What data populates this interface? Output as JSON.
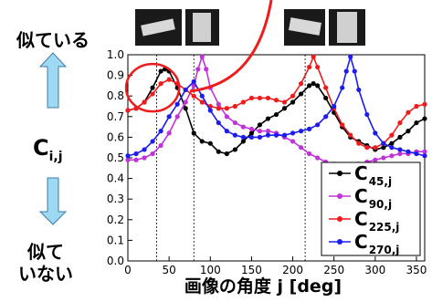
{
  "labels": {
    "similar": "似ている",
    "not_similar_line1": "似て",
    "not_similar_line2": "いない",
    "cij_main": "C",
    "cij_sub": "i,j"
  },
  "arrows": {
    "color": "#9fd8f2",
    "up": "up-arrow-icon",
    "down": "down-arrow-icon"
  },
  "thumbnails": [
    "box-photo-1",
    "box-photo-2",
    "box-photo-3",
    "box-photo-4"
  ],
  "chart_data": {
    "type": "line",
    "xlabel": "画像の角度 j [deg]",
    "ylabel": "",
    "xlim": [
      0,
      360
    ],
    "ylim": [
      0.0,
      1.0
    ],
    "x_ticks": [
      "0",
      "50",
      "100",
      "150",
      "200",
      "250",
      "300",
      "350"
    ],
    "y_ticks": [
      "0.0",
      "0.1",
      "0.2",
      "0.3",
      "0.4",
      "0.5",
      "0.6",
      "0.7",
      "0.8",
      "0.9",
      "1.0"
    ],
    "reference_lines_x": [
      35,
      80,
      215
    ],
    "legend_position": "bottom-right",
    "highlight_circle": {
      "x": 30,
      "y": 0.84
    },
    "series": [
      {
        "name": "C",
        "sub": "45,j",
        "color": "#000000",
        "x": [
          0,
          10,
          20,
          30,
          40,
          45,
          50,
          60,
          70,
          80,
          90,
          100,
          110,
          120,
          130,
          140,
          150,
          160,
          170,
          180,
          190,
          200,
          210,
          220,
          225,
          230,
          240,
          250,
          260,
          270,
          280,
          290,
          300,
          310,
          320,
          330,
          340,
          350,
          360
        ],
        "values": [
          0.73,
          0.74,
          0.77,
          0.84,
          0.92,
          0.93,
          0.92,
          0.84,
          0.74,
          0.62,
          0.58,
          0.57,
          0.53,
          0.52,
          0.54,
          0.58,
          0.62,
          0.66,
          0.69,
          0.71,
          0.74,
          0.77,
          0.81,
          0.85,
          0.86,
          0.85,
          0.79,
          0.72,
          0.65,
          0.6,
          0.58,
          0.56,
          0.54,
          0.55,
          0.57,
          0.6,
          0.63,
          0.67,
          0.69
        ]
      },
      {
        "name": "C",
        "sub": "90,j",
        "color": "#c033d8",
        "x": [
          0,
          10,
          20,
          30,
          40,
          50,
          60,
          70,
          80,
          85,
          90,
          95,
          100,
          110,
          120,
          130,
          140,
          150,
          160,
          170,
          180,
          190,
          200,
          210,
          220,
          230,
          240,
          250,
          260,
          270,
          280,
          290,
          300,
          310,
          320,
          330,
          340,
          350,
          360
        ],
        "values": [
          0.49,
          0.49,
          0.5,
          0.52,
          0.56,
          0.62,
          0.7,
          0.77,
          0.85,
          0.93,
          0.99,
          0.93,
          0.84,
          0.76,
          0.7,
          0.67,
          0.65,
          0.64,
          0.63,
          0.63,
          0.62,
          0.6,
          0.58,
          0.55,
          0.52,
          0.5,
          0.48,
          0.47,
          0.46,
          0.46,
          0.47,
          0.48,
          0.49,
          0.5,
          0.51,
          0.52,
          0.52,
          0.53,
          0.53
        ]
      },
      {
        "name": "C",
        "sub": "225,j",
        "color": "#ee1c1c",
        "x": [
          0,
          10,
          20,
          30,
          40,
          50,
          60,
          70,
          80,
          90,
          100,
          110,
          120,
          130,
          140,
          150,
          160,
          170,
          180,
          190,
          200,
          210,
          220,
          225,
          230,
          240,
          250,
          260,
          270,
          280,
          290,
          300,
          310,
          320,
          330,
          340,
          350,
          360
        ],
        "values": [
          0.73,
          0.74,
          0.77,
          0.81,
          0.86,
          0.88,
          0.86,
          0.83,
          0.8,
          0.77,
          0.75,
          0.74,
          0.74,
          0.75,
          0.77,
          0.79,
          0.79,
          0.79,
          0.78,
          0.77,
          0.8,
          0.86,
          0.94,
          0.99,
          0.94,
          0.84,
          0.74,
          0.66,
          0.61,
          0.57,
          0.55,
          0.55,
          0.57,
          0.61,
          0.67,
          0.72,
          0.75,
          0.76
        ]
      },
      {
        "name": "C",
        "sub": "270,j",
        "color": "#1c1cee",
        "x": [
          0,
          10,
          20,
          30,
          40,
          50,
          60,
          70,
          80,
          90,
          100,
          110,
          120,
          130,
          140,
          150,
          160,
          170,
          180,
          190,
          200,
          210,
          220,
          230,
          240,
          250,
          260,
          265,
          270,
          275,
          280,
          290,
          300,
          310,
          320,
          330,
          340,
          350,
          360
        ],
        "values": [
          0.51,
          0.52,
          0.54,
          0.58,
          0.63,
          0.7,
          0.76,
          0.83,
          0.87,
          0.8,
          0.73,
          0.67,
          0.63,
          0.61,
          0.6,
          0.6,
          0.6,
          0.61,
          0.61,
          0.61,
          0.62,
          0.63,
          0.64,
          0.66,
          0.7,
          0.75,
          0.84,
          0.92,
          0.99,
          0.92,
          0.83,
          0.71,
          0.62,
          0.57,
          0.55,
          0.54,
          0.53,
          0.52,
          0.51
        ]
      }
    ]
  }
}
